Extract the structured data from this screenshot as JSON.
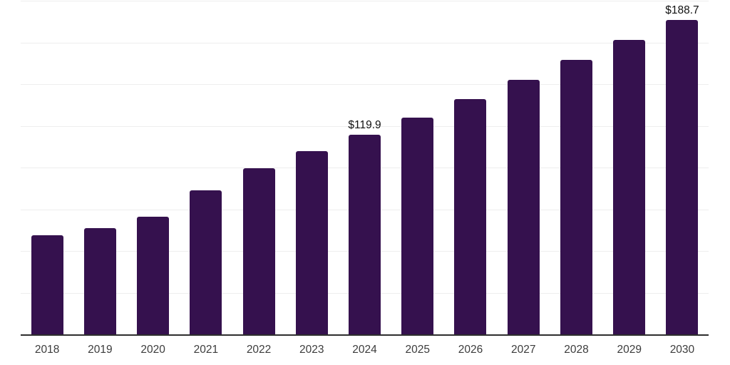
{
  "chart_data": {
    "type": "bar",
    "title": "",
    "xlabel": "",
    "ylabel": "",
    "categories": [
      "2018",
      "2019",
      "2020",
      "2021",
      "2022",
      "2023",
      "2024",
      "2025",
      "2026",
      "2027",
      "2028",
      "2029",
      "2030"
    ],
    "values": [
      59.7,
      63.9,
      70.8,
      86.9,
      100.1,
      110.3,
      119.9,
      130.5,
      141.4,
      153.2,
      165.0,
      176.9,
      188.7
    ],
    "value_labels": {
      "2024": "$119.9",
      "2030": "$188.7"
    },
    "ylim": [
      0,
      200
    ],
    "gridline_step": 25,
    "grid": true,
    "legend": false,
    "colors": {
      "bar": "#35114E",
      "gridline": "#EEEEEE",
      "axis": "#2E2E2E",
      "tick_label": "#3C3C3C",
      "value_label": "#111111"
    }
  }
}
